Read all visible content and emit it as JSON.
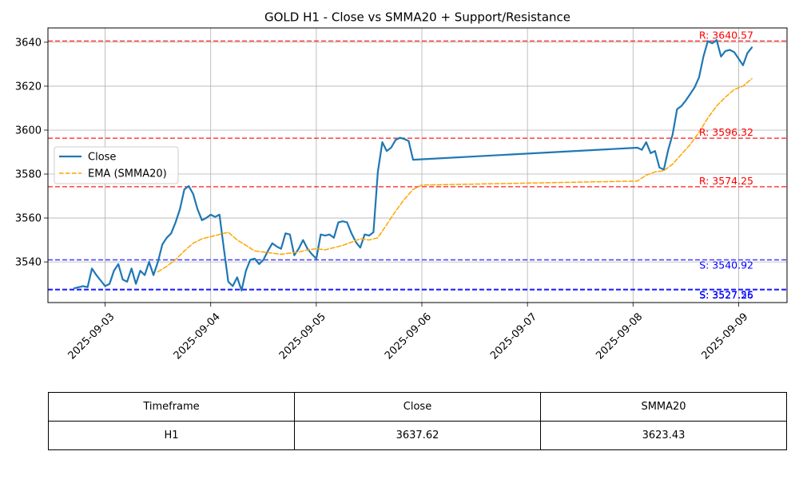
{
  "chart_data": {
    "type": "line",
    "title": "GOLD H1 - Close vs SMMA20 + Support/Resistance",
    "xlabel": "",
    "ylabel": "",
    "x_range": [
      "2025-09-02T11:00",
      "2025-09-09T11:00"
    ],
    "ylim": [
      3521.5,
      3646.5
    ],
    "yticks": [
      3540,
      3560,
      3580,
      3600,
      3620,
      3640
    ],
    "xticks": [
      "2025-09-03",
      "2025-09-04",
      "2025-09-05",
      "2025-09-06",
      "2025-09-07",
      "2025-09-08",
      "2025-09-09"
    ],
    "grid": true,
    "legend_placement": "center-left",
    "series": [
      {
        "name": "Close",
        "color": "#1f77b4",
        "style": "solid",
        "points": [
          [
            "2025-09-02T17:00",
            3528
          ],
          [
            "2025-09-02T19:00",
            3529
          ],
          [
            "2025-09-02T20:00",
            3528.5
          ],
          [
            "2025-09-02T21:00",
            3537
          ],
          [
            "2025-09-02T22:00",
            3534
          ],
          [
            "2025-09-02T23:00",
            3531.5
          ],
          [
            "2025-09-03T00:00",
            3529
          ],
          [
            "2025-09-03T01:00",
            3530
          ],
          [
            "2025-09-03T02:00",
            3536
          ],
          [
            "2025-09-03T03:00",
            3539
          ],
          [
            "2025-09-03T04:00",
            3532
          ],
          [
            "2025-09-03T05:00",
            3531
          ],
          [
            "2025-09-03T06:00",
            3537
          ],
          [
            "2025-09-03T07:00",
            3530
          ],
          [
            "2025-09-03T08:00",
            3536
          ],
          [
            "2025-09-03T09:00",
            3534
          ],
          [
            "2025-09-03T10:00",
            3540
          ],
          [
            "2025-09-03T11:00",
            3534
          ],
          [
            "2025-09-03T12:00",
            3540
          ],
          [
            "2025-09-03T13:00",
            3548
          ],
          [
            "2025-09-03T14:00",
            3551
          ],
          [
            "2025-09-03T15:00",
            3553
          ],
          [
            "2025-09-03T16:00",
            3558
          ],
          [
            "2025-09-03T17:00",
            3564
          ],
          [
            "2025-09-03T18:00",
            3573
          ],
          [
            "2025-09-03T19:00",
            3574.5
          ],
          [
            "2025-09-03T20:00",
            3571
          ],
          [
            "2025-09-03T21:00",
            3564
          ],
          [
            "2025-09-03T22:00",
            3559
          ],
          [
            "2025-09-03T23:00",
            3560
          ],
          [
            "2025-09-04T00:00",
            3561.5
          ],
          [
            "2025-09-04T01:00",
            3560.5
          ],
          [
            "2025-09-04T02:00",
            3561.5
          ],
          [
            "2025-09-04T03:00",
            3546
          ],
          [
            "2025-09-04T04:00",
            3531
          ],
          [
            "2025-09-04T05:00",
            3529
          ],
          [
            "2025-09-04T06:00",
            3533
          ],
          [
            "2025-09-04T07:00",
            3527
          ],
          [
            "2025-09-04T08:00",
            3536
          ],
          [
            "2025-09-04T09:00",
            3541
          ],
          [
            "2025-09-04T10:00",
            3541.5
          ],
          [
            "2025-09-04T11:00",
            3539
          ],
          [
            "2025-09-04T12:00",
            3541
          ],
          [
            "2025-09-04T13:00",
            3545
          ],
          [
            "2025-09-04T14:00",
            3548.5
          ],
          [
            "2025-09-04T15:00",
            3547
          ],
          [
            "2025-09-04T16:00",
            3546
          ],
          [
            "2025-09-04T17:00",
            3553
          ],
          [
            "2025-09-04T18:00",
            3552.5
          ],
          [
            "2025-09-04T19:00",
            3543
          ],
          [
            "2025-09-04T20:00",
            3546
          ],
          [
            "2025-09-04T21:00",
            3550
          ],
          [
            "2025-09-04T22:00",
            3546
          ],
          [
            "2025-09-04T23:00",
            3543.5
          ],
          [
            "2025-09-05T00:00",
            3541.5
          ],
          [
            "2025-09-05T01:00",
            3552.5
          ],
          [
            "2025-09-05T02:00",
            3552
          ],
          [
            "2025-09-05T03:00",
            3552.5
          ],
          [
            "2025-09-05T04:00",
            3551
          ],
          [
            "2025-09-05T05:00",
            3558
          ],
          [
            "2025-09-05T06:00",
            3558.5
          ],
          [
            "2025-09-05T07:00",
            3558
          ],
          [
            "2025-09-05T08:00",
            3553
          ],
          [
            "2025-09-05T09:00",
            3549
          ],
          [
            "2025-09-05T10:00",
            3546.5
          ],
          [
            "2025-09-05T11:00",
            3552.5
          ],
          [
            "2025-09-05T12:00",
            3552
          ],
          [
            "2025-09-05T13:00",
            3553.5
          ],
          [
            "2025-09-05T14:00",
            3581
          ],
          [
            "2025-09-05T15:00",
            3594.5
          ],
          [
            "2025-09-05T16:00",
            3590.5
          ],
          [
            "2025-09-05T17:00",
            3592
          ],
          [
            "2025-09-05T18:00",
            3595.5
          ],
          [
            "2025-09-05T19:00",
            3596.5
          ],
          [
            "2025-09-05T20:00",
            3596
          ],
          [
            "2025-09-05T21:00",
            3595
          ],
          [
            "2025-09-05T22:00",
            3586.5
          ],
          [
            "2025-09-08T01:00",
            3592
          ],
          [
            "2025-09-08T02:00",
            3591
          ],
          [
            "2025-09-08T03:00",
            3594.5
          ],
          [
            "2025-09-08T04:00",
            3589.5
          ],
          [
            "2025-09-08T05:00",
            3590.5
          ],
          [
            "2025-09-08T06:00",
            3583
          ],
          [
            "2025-09-08T07:00",
            3582
          ],
          [
            "2025-09-08T08:00",
            3591
          ],
          [
            "2025-09-08T09:00",
            3598
          ],
          [
            "2025-09-08T10:00",
            3609.5
          ],
          [
            "2025-09-08T11:00",
            3611
          ],
          [
            "2025-09-08T12:00",
            3613.5
          ],
          [
            "2025-09-08T13:00",
            3616.5
          ],
          [
            "2025-09-08T14:00",
            3619.5
          ],
          [
            "2025-09-08T15:00",
            3624
          ],
          [
            "2025-09-08T16:00",
            3633.5
          ],
          [
            "2025-09-08T17:00",
            3640.5
          ],
          [
            "2025-09-08T18:00",
            3639.5
          ],
          [
            "2025-09-08T19:00",
            3641
          ],
          [
            "2025-09-08T20:00",
            3633.5
          ],
          [
            "2025-09-08T21:00",
            3636
          ],
          [
            "2025-09-08T22:00",
            3636.5
          ],
          [
            "2025-09-08T23:00",
            3635.5
          ],
          [
            "2025-09-09T00:00",
            3632.5
          ],
          [
            "2025-09-09T01:00",
            3629.5
          ],
          [
            "2025-09-09T02:00",
            3635
          ],
          [
            "2025-09-09T03:00",
            3637.62
          ]
        ]
      },
      {
        "name": "EMA (SMMA20)",
        "color": "#ffa500",
        "style": "dashed",
        "points": [
          [
            "2025-09-03T12:00",
            3535.5
          ],
          [
            "2025-09-03T14:00",
            3538
          ],
          [
            "2025-09-03T16:00",
            3541
          ],
          [
            "2025-09-03T18:00",
            3545
          ],
          [
            "2025-09-03T20:00",
            3548.5
          ],
          [
            "2025-09-03T22:00",
            3550.5
          ],
          [
            "2025-09-04T00:00",
            3551.5
          ],
          [
            "2025-09-04T02:00",
            3552.5
          ],
          [
            "2025-09-04T04:00",
            3553.5
          ],
          [
            "2025-09-04T06:00",
            3550
          ],
          [
            "2025-09-04T08:00",
            3547.5
          ],
          [
            "2025-09-04T10:00",
            3545
          ],
          [
            "2025-09-04T12:00",
            3544.5
          ],
          [
            "2025-09-04T14:00",
            3544
          ],
          [
            "2025-09-04T16:00",
            3543.5
          ],
          [
            "2025-09-04T18:00",
            3544
          ],
          [
            "2025-09-04T20:00",
            3544.5
          ],
          [
            "2025-09-04T22:00",
            3545.5
          ],
          [
            "2025-09-05T00:00",
            3546
          ],
          [
            "2025-09-05T02:00",
            3545.5
          ],
          [
            "2025-09-05T04:00",
            3546.5
          ],
          [
            "2025-09-05T06:00",
            3547.5
          ],
          [
            "2025-09-05T08:00",
            3549
          ],
          [
            "2025-09-05T10:00",
            3550.5
          ],
          [
            "2025-09-05T12:00",
            3550
          ],
          [
            "2025-09-05T14:00",
            3551
          ],
          [
            "2025-09-05T16:00",
            3557
          ],
          [
            "2025-09-05T18:00",
            3563
          ],
          [
            "2025-09-05T20:00",
            3568.5
          ],
          [
            "2025-09-05T22:00",
            3573
          ],
          [
            "2025-09-06T00:00",
            3575
          ],
          [
            "2025-09-08T01:00",
            3576.8
          ],
          [
            "2025-09-08T03:00",
            3579.5
          ],
          [
            "2025-09-08T05:00",
            3581
          ],
          [
            "2025-09-08T07:00",
            3581.5
          ],
          [
            "2025-09-08T09:00",
            3584.5
          ],
          [
            "2025-09-08T11:00",
            3589
          ],
          [
            "2025-09-08T13:00",
            3593.5
          ],
          [
            "2025-09-08T15:00",
            3599
          ],
          [
            "2025-09-08T17:00",
            3605.5
          ],
          [
            "2025-09-08T19:00",
            3611
          ],
          [
            "2025-09-08T21:00",
            3615
          ],
          [
            "2025-09-08T23:00",
            3618.5
          ],
          [
            "2025-09-09T01:00",
            3620
          ],
          [
            "2025-09-09T03:00",
            3623.43
          ]
        ]
      }
    ],
    "levels": [
      {
        "kind": "resistance",
        "value": 3640.57,
        "label": "R: 3640.57",
        "color": "#ff0000"
      },
      {
        "kind": "resistance",
        "value": 3596.32,
        "label": "R: 3596.32",
        "color": "#ff0000"
      },
      {
        "kind": "resistance",
        "value": 3574.25,
        "label": "R: 3574.25",
        "color": "#ff0000"
      },
      {
        "kind": "support",
        "value": 3540.92,
        "label": "S: 3540.92",
        "color": "#0000ff"
      },
      {
        "kind": "support",
        "value": 3527.26,
        "label": "S: 3527.26",
        "color": "#0000ff"
      },
      {
        "kind": "support",
        "value": 3527.55,
        "label": "S: 3527.55",
        "color": "#0000ff"
      }
    ],
    "table": {
      "headers": [
        "Timeframe",
        "Close",
        "SMMA20"
      ],
      "rows": [
        [
          "H1",
          "3637.62",
          "3623.43"
        ]
      ]
    }
  }
}
